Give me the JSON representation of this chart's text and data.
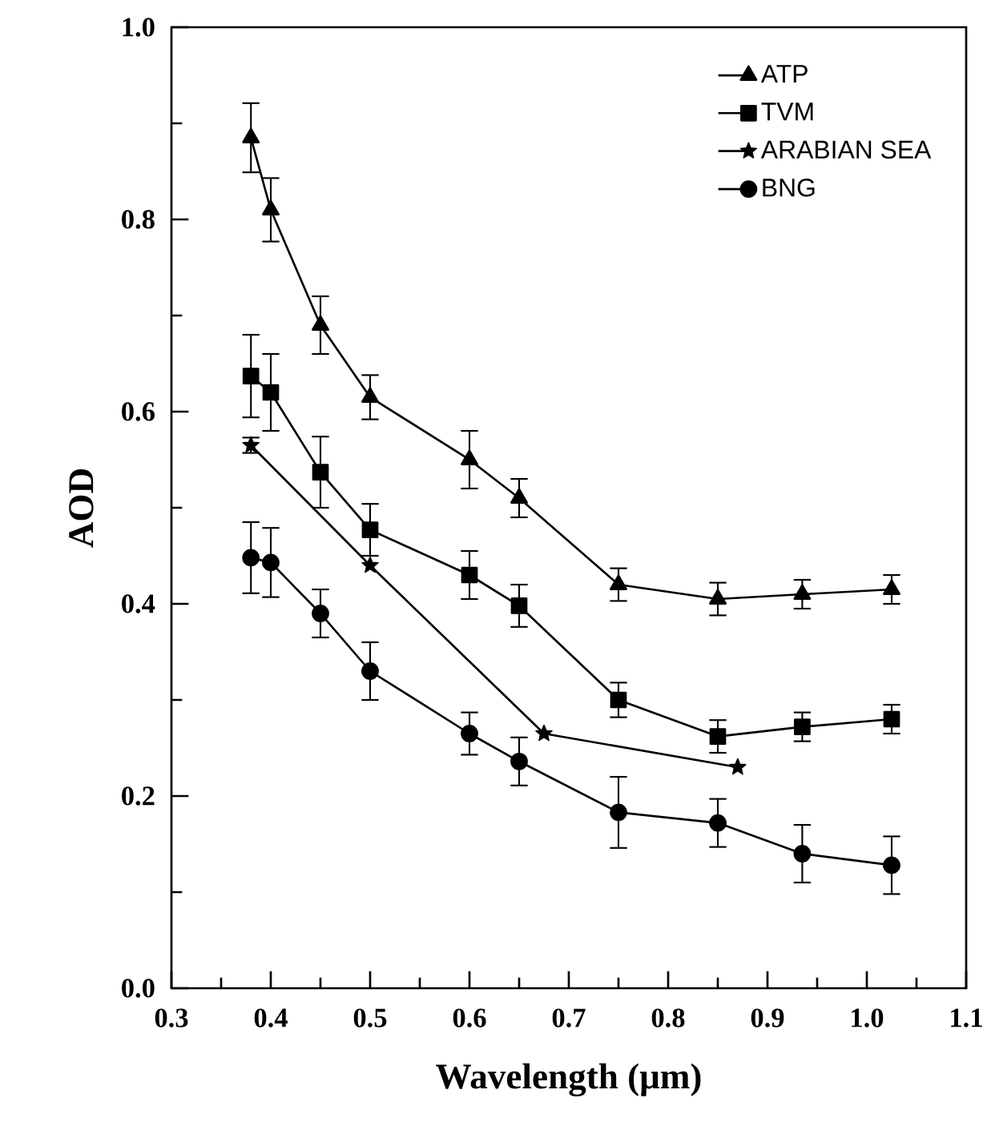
{
  "chart_data": {
    "type": "line",
    "xlabel": "Wavelength (μm)",
    "ylabel": "AOD",
    "xlim": [
      0.3,
      1.1
    ],
    "ylim": [
      0.0,
      1.0
    ],
    "xticks": [
      0.3,
      0.4,
      0.5,
      0.6,
      0.7,
      0.8,
      0.9,
      {
        "value": 1.0,
        "label": "1.0"
      },
      1.1
    ],
    "yticks": [
      {
        "value": 0.0,
        "label": "0.0"
      },
      {
        "value": 0.2,
        "label": "0.2"
      },
      {
        "value": 0.4,
        "label": "0.4"
      },
      {
        "value": 0.6,
        "label": "0.6"
      },
      {
        "value": 0.8,
        "label": "0.8"
      },
      {
        "value": 1.0,
        "label": "1.0"
      }
    ],
    "grid": false,
    "legend": "top right",
    "line_style": "solid",
    "series": [
      {
        "name": "ATP",
        "color": "#000000",
        "marker": "triangle",
        "x": [
          0.38,
          0.4,
          0.45,
          0.5,
          0.6,
          0.65,
          0.75,
          0.85,
          0.935,
          1.025
        ],
        "values": [
          0.885,
          0.81,
          0.69,
          0.615,
          0.55,
          0.51,
          0.42,
          0.405,
          0.41,
          0.415
        ],
        "errors": [
          0.036,
          0.033,
          0.03,
          0.023,
          0.03,
          0.02,
          0.017,
          0.017,
          0.015,
          0.015
        ]
      },
      {
        "name": "TVM",
        "color": "#000000",
        "marker": "square",
        "x": [
          0.38,
          0.4,
          0.45,
          0.5,
          0.6,
          0.65,
          0.75,
          0.85,
          0.935,
          1.025
        ],
        "values": [
          0.637,
          0.62,
          0.537,
          0.477,
          0.43,
          0.398,
          0.3,
          0.262,
          0.272,
          0.28
        ],
        "errors": [
          0.043,
          0.04,
          0.037,
          0.027,
          0.025,
          0.022,
          0.018,
          0.017,
          0.015,
          0.015
        ]
      },
      {
        "name": "ARABIAN SEA",
        "color": "#000000",
        "marker": "star",
        "x": [
          0.38,
          0.5,
          0.675,
          0.87
        ],
        "values": [
          0.565,
          0.44,
          0.265,
          0.23
        ],
        "errors": [
          0.008,
          null,
          null,
          null
        ]
      },
      {
        "name": "BNG",
        "color": "#000000",
        "marker": "circle",
        "x": [
          0.38,
          0.4,
          0.45,
          0.5,
          0.6,
          0.65,
          0.75,
          0.85,
          0.935,
          1.025
        ],
        "values": [
          0.448,
          0.443,
          0.39,
          0.33,
          0.265,
          0.236,
          0.183,
          0.172,
          0.14,
          0.128
        ],
        "errors": [
          0.037,
          0.036,
          0.025,
          0.03,
          0.022,
          0.025,
          0.037,
          0.025,
          0.03,
          0.03
        ]
      }
    ]
  }
}
